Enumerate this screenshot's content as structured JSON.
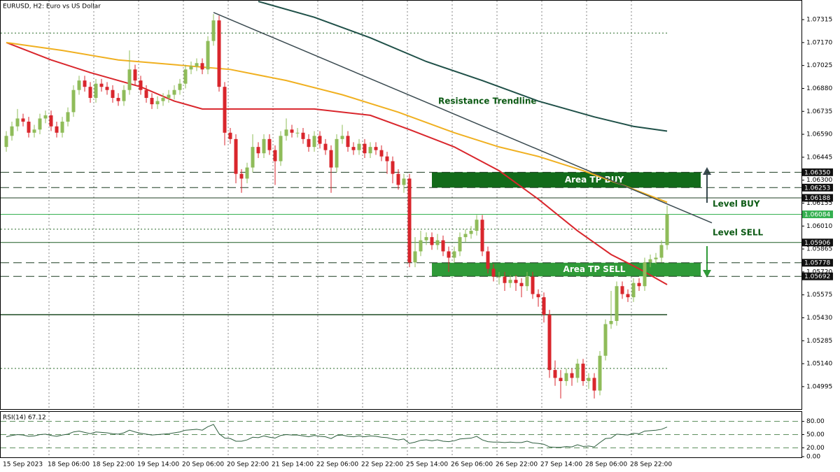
{
  "chart_data": {
    "type": "candlestick",
    "title": "EURUSD, H2:  Euro vs US Dollar",
    "up_color": "#8fbc5a",
    "down_color": "#d9262c",
    "ylim": [
      1.04853,
      1.07439
    ],
    "yticks": [
      1.07315,
      {
        "value": 1.0717,
        "label": "1.07170"
      },
      1.07025,
      {
        "value": 1.0688,
        "label": "1.06880"
      },
      1.06735,
      {
        "value": 1.0659,
        "label": "1.06590"
      },
      1.06445,
      {
        "value": 1.063,
        "label": "1.06300"
      },
      1.06155,
      {
        "value": 1.0601,
        "label": "1.06010"
      },
      1.05865,
      {
        "value": 1.0572,
        "label": "1.05720"
      },
      1.05575,
      {
        "value": 1.0543,
        "label": "1.05430"
      },
      1.05285,
      {
        "value": 1.0514,
        "label": "1.05140"
      },
      1.04995
    ],
    "candles": {
      "open": [
        1.0651,
        1.0658,
        1.0664,
        1.0669,
        1.0667,
        1.066,
        1.0662,
        1.0669,
        1.0671,
        1.0664,
        1.066,
        1.0667,
        1.0673,
        1.0687,
        1.0693,
        1.0689,
        1.0682,
        1.0691,
        1.0689,
        1.0687,
        1.0682,
        1.068,
        1.0687,
        1.07,
        1.0693,
        1.0687,
        1.0682,
        1.0678,
        1.068,
        1.0682,
        1.0684,
        1.0687,
        1.0691,
        1.07,
        1.0702,
        1.0704,
        1.07,
        1.0718,
        1.0731,
        1.0689,
        1.066,
        1.0656,
        1.0634,
        1.0631,
        1.0638,
        1.0651,
        1.0647,
        1.0656,
        1.0649,
        1.0642,
        1.0658,
        1.0662,
        1.066,
        1.066,
        1.0656,
        1.0651,
        1.0658,
        1.0653,
        1.0649,
        1.0638,
        1.0656,
        1.0658,
        1.0651,
        1.0649,
        1.0653,
        1.0647,
        1.0651,
        1.0649,
        1.0645,
        1.0642,
        1.0634,
        1.0627,
        1.0631,
        1.0578,
        1.0585,
        1.0592,
        1.0594,
        1.0589,
        1.0592,
        1.0585,
        1.0581,
        1.0585,
        1.0594,
        1.0596,
        1.0598,
        1.0605,
        1.0585,
        1.0574,
        1.0569,
        1.0569,
        1.0565,
        1.0567,
        1.0565,
        1.0563,
        1.0569,
        1.0558,
        1.0556,
        1.0545,
        1.051,
        1.0505,
        1.0503,
        1.0508,
        1.0505,
        1.0514,
        1.0503,
        1.0505,
        1.0497,
        1.0519,
        1.0539,
        1.0541,
        1.0563,
        1.0558,
        1.0556,
        1.0565,
        1.0563,
        1.0578,
        1.058,
        1.0581,
        1.0589
      ],
      "high": [
        1.0661,
        1.0667,
        1.0675,
        1.0672,
        1.067,
        1.0665,
        1.0672,
        1.0674,
        1.0674,
        1.0667,
        1.067,
        1.0676,
        1.069,
        1.0696,
        1.0696,
        1.0692,
        1.0694,
        1.0694,
        1.0692,
        1.069,
        1.0685,
        1.069,
        1.0712,
        1.0703,
        1.0696,
        1.069,
        1.0685,
        1.0683,
        1.0685,
        1.0687,
        1.069,
        1.0694,
        1.0703,
        1.0705,
        1.0707,
        1.0707,
        1.0721,
        1.0735,
        1.0734,
        1.0692,
        1.0663,
        1.0659,
        1.0637,
        1.0641,
        1.0659,
        1.0654,
        1.0659,
        1.0659,
        1.0652,
        1.0661,
        1.0669,
        1.0665,
        1.0663,
        1.0663,
        1.0659,
        1.0661,
        1.0661,
        1.0656,
        1.0652,
        1.0659,
        1.0665,
        1.0661,
        1.0654,
        1.0656,
        1.0656,
        1.0654,
        1.0654,
        1.0652,
        1.0648,
        1.0645,
        1.0637,
        1.0634,
        1.0634,
        1.0594,
        1.0598,
        1.0597,
        1.0597,
        1.0596,
        1.0595,
        1.0588,
        1.0588,
        1.0597,
        1.0599,
        1.0601,
        1.0608,
        1.0608,
        1.0588,
        1.0577,
        1.0572,
        1.0572,
        1.057,
        1.057,
        1.0568,
        1.0572,
        1.0572,
        1.0561,
        1.0559,
        1.0548,
        1.0516,
        1.051,
        1.0511,
        1.0511,
        1.0517,
        1.0517,
        1.0508,
        1.0508,
        1.0522,
        1.0542,
        1.056,
        1.0566,
        1.0566,
        1.0561,
        1.0568,
        1.0568,
        1.0581,
        1.0583,
        1.0584,
        1.0592,
        1.0614
      ],
      "low": [
        1.0648,
        1.0655,
        1.0661,
        1.0664,
        1.0657,
        1.0657,
        1.0659,
        1.0666,
        1.0661,
        1.0657,
        1.0657,
        1.0664,
        1.067,
        1.0684,
        1.0686,
        1.0679,
        1.0679,
        1.0686,
        1.0684,
        1.0679,
        1.0677,
        1.0677,
        1.0684,
        1.069,
        1.0684,
        1.0679,
        1.0675,
        1.0675,
        1.0677,
        1.0679,
        1.0681,
        1.0684,
        1.0688,
        1.0697,
        1.0699,
        1.0697,
        1.0697,
        1.0715,
        1.0686,
        1.0652,
        1.0653,
        1.0628,
        1.0622,
        1.0628,
        1.0635,
        1.0644,
        1.0644,
        1.0646,
        1.0627,
        1.0639,
        1.0655,
        1.0657,
        1.0657,
        1.0653,
        1.0648,
        1.0648,
        1.065,
        1.0646,
        1.0622,
        1.0635,
        1.0653,
        1.0648,
        1.0646,
        1.0646,
        1.0644,
        1.0644,
        1.0646,
        1.0642,
        1.0634,
        1.0628,
        1.0624,
        1.0622,
        1.0575,
        1.0575,
        1.0582,
        1.0589,
        1.0586,
        1.0586,
        1.0582,
        1.0572,
        1.0578,
        1.0582,
        1.0591,
        1.0593,
        1.0595,
        1.0582,
        1.0571,
        1.0566,
        1.0564,
        1.056,
        1.0562,
        1.056,
        1.0556,
        1.056,
        1.0555,
        1.055,
        1.054,
        1.0505,
        1.05,
        1.0492,
        1.05,
        1.05,
        1.0502,
        1.05,
        1.0498,
        1.0492,
        1.0494,
        1.0516,
        1.0536,
        1.0538,
        1.0555,
        1.0553,
        1.0553,
        1.056,
        1.056,
        1.0575,
        1.0577,
        1.0578,
        1.0586
      ],
      "close": [
        1.0658,
        1.0664,
        1.0669,
        1.0667,
        1.066,
        1.0662,
        1.0669,
        1.0671,
        1.0664,
        1.066,
        1.0667,
        1.0673,
        1.0687,
        1.0693,
        1.0689,
        1.0682,
        1.0691,
        1.0689,
        1.0687,
        1.0682,
        1.068,
        1.0687,
        1.07,
        1.0693,
        1.0687,
        1.0682,
        1.0678,
        1.068,
        1.0682,
        1.0684,
        1.0687,
        1.0691,
        1.07,
        1.0702,
        1.0704,
        1.07,
        1.0718,
        1.0731,
        1.0689,
        1.066,
        1.0656,
        1.0634,
        1.0631,
        1.0638,
        1.0651,
        1.0647,
        1.0656,
        1.0649,
        1.0642,
        1.0658,
        1.0662,
        1.066,
        1.066,
        1.0656,
        1.0651,
        1.0658,
        1.0653,
        1.0649,
        1.0638,
        1.0656,
        1.0658,
        1.0651,
        1.0649,
        1.0653,
        1.0647,
        1.0651,
        1.0649,
        1.0645,
        1.0642,
        1.0634,
        1.0627,
        1.0631,
        1.0578,
        1.0585,
        1.0592,
        1.0594,
        1.0589,
        1.0592,
        1.0585,
        1.0581,
        1.0585,
        1.0594,
        1.0596,
        1.0598,
        1.0605,
        1.0585,
        1.0574,
        1.0569,
        1.0569,
        1.0565,
        1.0567,
        1.0565,
        1.0563,
        1.0569,
        1.0558,
        1.0556,
        1.0545,
        1.051,
        1.0505,
        1.0503,
        1.0508,
        1.0505,
        1.0514,
        1.0503,
        1.0505,
        1.0497,
        1.0519,
        1.0539,
        1.0541,
        1.0563,
        1.0558,
        1.0556,
        1.0565,
        1.0563,
        1.0578,
        1.058,
        1.0581,
        1.0589,
        1.06084
      ]
    },
    "lines": [
      {
        "color": "#d9262c",
        "x": [
          0,
          8,
          15,
          24,
          30,
          35,
          45,
          55,
          65,
          72,
          80,
          88,
          95,
          102,
          108,
          113,
          118
        ],
        "values": [
          1.0717,
          1.0706,
          1.0698,
          1.0689,
          1.068,
          1.0675,
          1.0675,
          1.0675,
          1.0671,
          1.0662,
          1.0651,
          1.0636,
          1.0618,
          1.0598,
          1.0583,
          1.0574,
          1.0564
        ]
      },
      {
        "color": "#f0b020",
        "x": [
          0,
          10,
          20,
          30,
          40,
          50,
          60,
          70,
          80,
          88,
          95,
          103,
          110,
          118
        ],
        "values": [
          1.0717,
          1.0712,
          1.0706,
          1.0703,
          1.07,
          1.0693,
          1.0684,
          1.0673,
          1.066,
          1.0651,
          1.0645,
          1.0636,
          1.0627,
          1.0616
        ]
      },
      {
        "color": "#1f5048",
        "x": [
          45,
          55,
          65,
          75,
          85,
          95,
          105,
          112,
          118
        ],
        "values": [
          1.0743,
          1.0733,
          1.072,
          1.0705,
          1.0693,
          1.068,
          1.067,
          1.0664,
          1.0661
        ]
      }
    ],
    "trendline": {
      "label": "Resistance Trendline",
      "color": "#3a4a50",
      "x": [
        37,
        126
      ],
      "values": [
        1.0736,
        1.0603
      ]
    },
    "zones": [
      {
        "label": "Area TP BUY",
        "from": 1.06253,
        "to": 1.0635,
        "start": 76,
        "end": 124,
        "color": "#126b1a"
      },
      {
        "label": "Area TP SELL",
        "from": 1.05692,
        "to": 1.05778,
        "start": 76,
        "end": 124,
        "color": "#2f9a38"
      }
    ],
    "levels": [
      {
        "value": 1.0635,
        "label": "1.06350",
        "style": "dashed",
        "color": "#1d3d22"
      },
      {
        "value": 1.06253,
        "label": "1.06253",
        "style": "dashed",
        "color": "#1d3d22"
      },
      {
        "value": 1.06188,
        "label": "1.06188",
        "style": "solid",
        "color": "#1d3d22"
      },
      {
        "value": 1.06084,
        "label": "1.06084",
        "style": "solid",
        "color": "#35b050"
      },
      {
        "value": 1.05906,
        "label": "1.05906",
        "style": "solid",
        "color": "#1d5a22"
      },
      {
        "value": 1.05778,
        "label": "1.05778",
        "style": "dashed",
        "color": "#1d3d22"
      },
      {
        "value": 1.05692,
        "label": "1.05692",
        "style": "dashed",
        "color": "#1d3d22"
      }
    ],
    "hlines": [
      {
        "value": 1.0723,
        "style": "dotted",
        "end": 118
      },
      {
        "value": 1.0599,
        "style": "dotted",
        "end": 118
      },
      {
        "value": 1.0511,
        "style": "dotted",
        "end": 118
      },
      {
        "value": 1.0545,
        "style": "solid",
        "end": 118
      }
    ],
    "notes": [
      "Level BUY",
      "Level SELL"
    ],
    "time_labels": {
      "index": [
        0,
        8,
        16,
        24,
        32,
        40,
        48,
        56,
        64,
        72,
        80,
        88,
        96,
        104,
        112
      ],
      "labels": [
        "15 Sep 2023",
        "18 Sep 06:00",
        "18 Sep 22:00",
        "19 Sep 14:00",
        "20 Sep 06:00",
        "20 Sep 22:00",
        "21 Sep 14:00",
        "22 Sep 06:00",
        "22 Sep 22:00",
        "25 Sep 14:00",
        "26 Sep 06:00",
        "26 Sep 22:00",
        "27 Sep 14:00",
        "28 Sep 06:00",
        "28 Sep 22:00"
      ]
    },
    "rsi": {
      "label": "RSI(14) 67.12",
      "color": "#2e5e3e",
      "ylim": [
        0,
        100
      ],
      "yticks": [
        {
          "value": 80,
          "label": "80.00"
        },
        {
          "value": 50,
          "label": "50.00"
        },
        {
          "value": 20,
          "label": "20.00"
        },
        {
          "value": 0,
          "label": "0.00"
        }
      ],
      "values": [
        45,
        48,
        50,
        49,
        46,
        47,
        50,
        51,
        48,
        46,
        49,
        51,
        56,
        58,
        55,
        52,
        56,
        55,
        54,
        52,
        51,
        54,
        60,
        56,
        53,
        51,
        49,
        50,
        51,
        52,
        54,
        56,
        60,
        61,
        62,
        60,
        68,
        73,
        52,
        42,
        41,
        35,
        35,
        38,
        44,
        43,
        47,
        44,
        42,
        48,
        50,
        49,
        49,
        47,
        45,
        48,
        46,
        45,
        41,
        48,
        49,
        46,
        45,
        47,
        45,
        47,
        46,
        44,
        43,
        40,
        38,
        40,
        30,
        33,
        37,
        38,
        36,
        38,
        35,
        34,
        36,
        40,
        41,
        42,
        46,
        38,
        34,
        33,
        33,
        32,
        33,
        32,
        32,
        35,
        31,
        30,
        28,
        22,
        21,
        21,
        23,
        22,
        27,
        23,
        24,
        22,
        32,
        41,
        42,
        51,
        50,
        49,
        53,
        52,
        58,
        59,
        60,
        62,
        67.12
      ]
    }
  }
}
